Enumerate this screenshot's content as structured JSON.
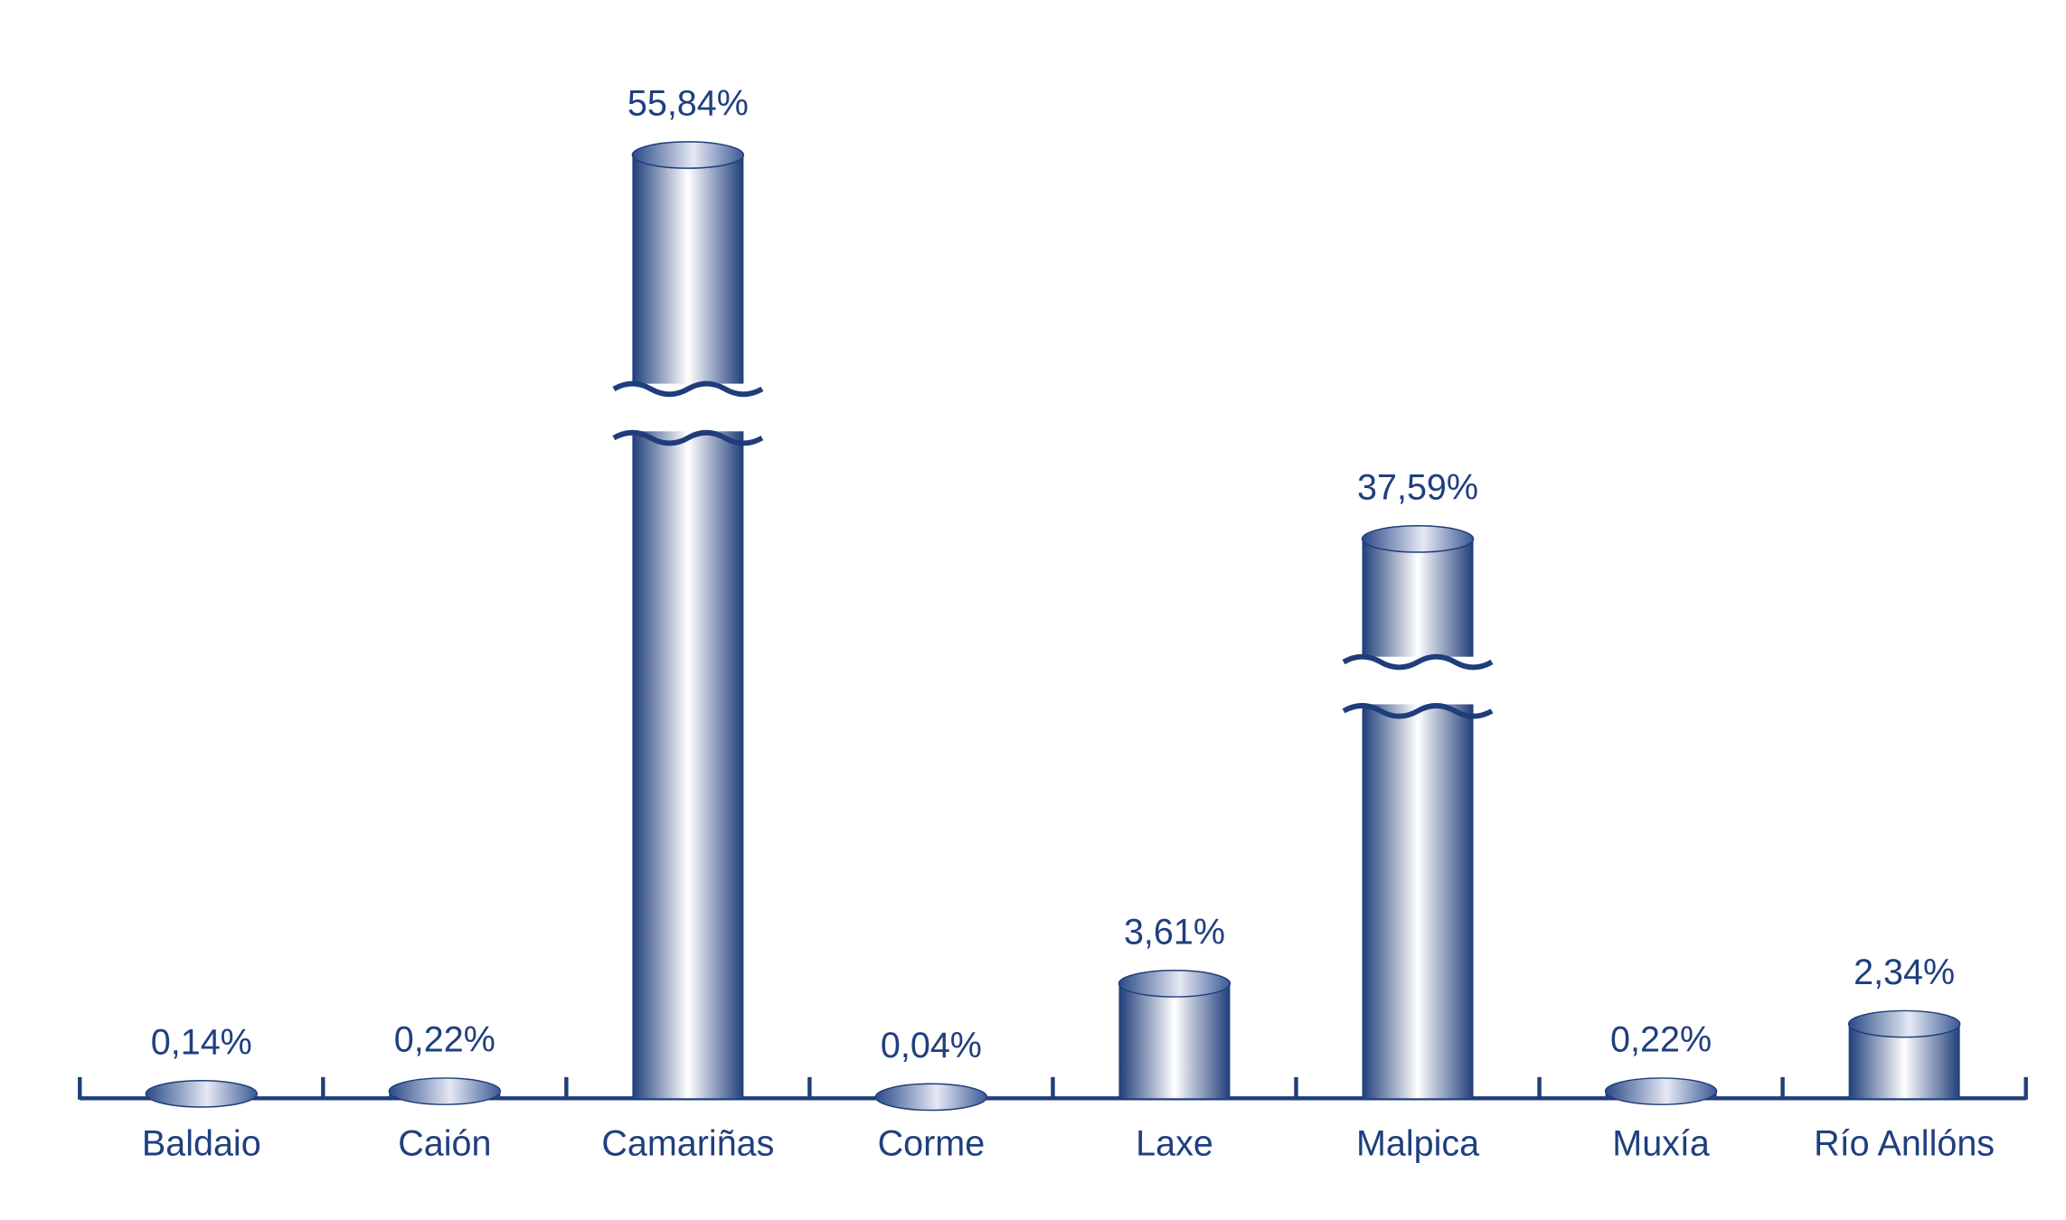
{
  "chart_data": {
    "type": "bar",
    "categories": [
      "Baldaio",
      "Caión",
      "Camariñas",
      "Corme",
      "Laxe",
      "Malpica",
      "Muxía",
      "Río Anllóns"
    ],
    "values": [
      0.14,
      0.22,
      55.84,
      0.04,
      3.61,
      37.59,
      0.22,
      2.34
    ],
    "value_labels": [
      "0,14%",
      "0,22%",
      "55,84%",
      "0,04%",
      "3,61%",
      "37,59%",
      "0,22%",
      "2,34%"
    ],
    "color": "#1f3d7a"
  }
}
